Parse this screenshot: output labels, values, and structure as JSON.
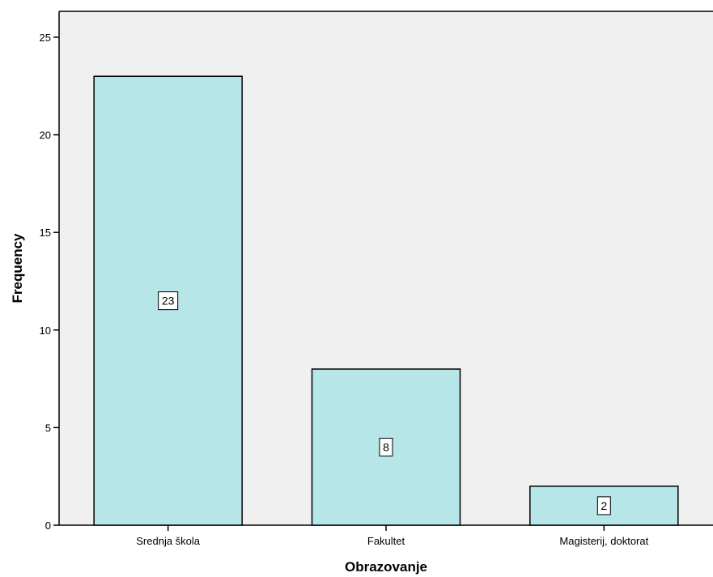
{
  "chart_data": {
    "type": "bar",
    "categories": [
      "Srednja škola",
      "Fakultet",
      "Magisterij, doktorat"
    ],
    "values": [
      23,
      8,
      2
    ],
    "data_labels": [
      "23",
      "8",
      "2"
    ],
    "xlabel": "Obrazovanje",
    "ylabel": "Frequency",
    "ylim": [
      0,
      25
    ],
    "yticks": [
      0,
      5,
      10,
      15,
      20,
      25
    ],
    "grid": false,
    "legend": "none",
    "colors": {
      "bar_fill": "#b6e6e8",
      "bar_stroke": "#000000",
      "plot_background": "#f0f0f0",
      "axis": "#000000"
    }
  }
}
